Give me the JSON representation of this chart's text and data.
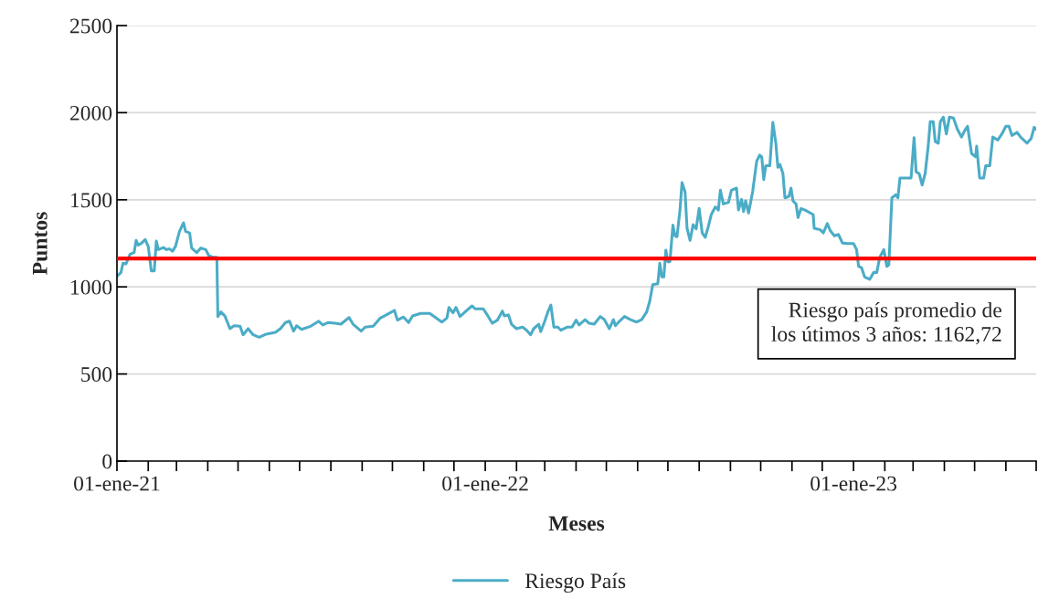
{
  "chart_data": {
    "type": "line",
    "xlabel": "Meses",
    "ylabel": "Puntos",
    "x": [
      "2021-01-01",
      "2021-01-05",
      "2021-01-07",
      "2021-01-10",
      "2021-01-14",
      "2021-01-18",
      "2021-01-20",
      "2021-01-22",
      "2021-01-25",
      "2021-01-29",
      "2021-02-01",
      "2021-02-04",
      "2021-02-07",
      "2021-02-09",
      "2021-02-11",
      "2021-02-16",
      "2021-02-19",
      "2021-02-22",
      "2021-02-25",
      "2021-02-28",
      "2021-03-04",
      "2021-03-08",
      "2021-03-10",
      "2021-03-14",
      "2021-03-16",
      "2021-03-21",
      "2021-03-25",
      "2021-03-30",
      "2021-04-02",
      "2021-04-06",
      "2021-04-10",
      "2021-04-11",
      "2021-04-14",
      "2021-04-18",
      "2021-04-23",
      "2021-04-27",
      "2021-05-03",
      "2021-05-06",
      "2021-05-11",
      "2021-05-16",
      "2021-05-22",
      "2021-05-29",
      "2021-06-07",
      "2021-06-12",
      "2021-06-17",
      "2021-06-21",
      "2021-06-25",
      "2021-06-28",
      "2021-07-03",
      "2021-07-12",
      "2021-07-20",
      "2021-07-24",
      "2021-07-29",
      "2021-08-05",
      "2021-08-11",
      "2021-08-19",
      "2021-08-23",
      "2021-08-31",
      "2021-09-04",
      "2021-09-12",
      "2021-09-19",
      "2021-09-25",
      "2021-10-03",
      "2021-10-06",
      "2021-10-12",
      "2021-10-17",
      "2021-10-21",
      "2021-10-29",
      "2021-11-07",
      "2021-11-19",
      "2021-11-24",
      "2021-11-26",
      "2021-11-30",
      "2021-12-03",
      "2021-12-07",
      "2021-12-13",
      "2021-12-19",
      "2021-12-22",
      "2021-12-30",
      "2022-01-03",
      "2022-01-08",
      "2022-01-13",
      "2022-01-18",
      "2022-01-20",
      "2022-01-24",
      "2022-01-27",
      "2022-02-01",
      "2022-02-07",
      "2022-02-11",
      "2022-02-15",
      "2022-02-18",
      "2022-02-23",
      "2022-02-25",
      "2022-03-01",
      "2022-03-04",
      "2022-03-07",
      "2022-03-10",
      "2022-03-14",
      "2022-03-17",
      "2022-03-23",
      "2022-03-28",
      "2022-04-01",
      "2022-04-04",
      "2022-04-10",
      "2022-04-14",
      "2022-04-19",
      "2022-04-25",
      "2022-04-29",
      "2022-05-04",
      "2022-05-08",
      "2022-05-10",
      "2022-05-14",
      "2022-05-19",
      "2022-05-25",
      "2022-05-31",
      "2022-06-05",
      "2022-06-10",
      "2022-06-13",
      "2022-06-16",
      "2022-06-21",
      "2022-06-23",
      "2022-06-25",
      "2022-06-27",
      "2022-06-29",
      "2022-07-01",
      "2022-07-03",
      "2022-07-06",
      "2022-07-08",
      "2022-07-10",
      "2022-07-13",
      "2022-07-15",
      "2022-07-18",
      "2022-07-20",
      "2022-07-23",
      "2022-07-26",
      "2022-07-29",
      "2022-08-01",
      "2022-08-04",
      "2022-08-07",
      "2022-08-10",
      "2022-08-13",
      "2022-08-17",
      "2022-08-20",
      "2022-08-22",
      "2022-08-25",
      "2022-08-30",
      "2022-09-02",
      "2022-09-07",
      "2022-09-09",
      "2022-09-12",
      "2022-09-14",
      "2022-09-16",
      "2022-09-19",
      "2022-09-23",
      "2022-09-27",
      "2022-09-30",
      "2022-10-02",
      "2022-10-04",
      "2022-10-06",
      "2022-10-10",
      "2022-10-13",
      "2022-10-16",
      "2022-10-18",
      "2022-10-20",
      "2022-10-23",
      "2022-10-25",
      "2022-10-29",
      "2022-10-31",
      "2022-11-02",
      "2022-11-05",
      "2022-11-07",
      "2022-11-10",
      "2022-11-14",
      "2022-11-22",
      "2022-11-23",
      "2022-11-29",
      "2022-12-02",
      "2022-12-06",
      "2022-12-09",
      "2022-12-13",
      "2022-12-17",
      "2022-12-21",
      "2022-12-26",
      "2023-01-01",
      "2023-01-04",
      "2023-01-06",
      "2023-01-09",
      "2023-01-12",
      "2023-01-17",
      "2023-01-21",
      "2023-01-24",
      "2023-01-27",
      "2023-01-31",
      "2023-02-03",
      "2023-02-05",
      "2023-02-08",
      "2023-02-12",
      "2023-02-14",
      "2023-02-16",
      "2023-02-22",
      "2023-02-27",
      "2023-03-02",
      "2023-03-04",
      "2023-03-07",
      "2023-03-10",
      "2023-03-13",
      "2023-03-16",
      "2023-03-18",
      "2023-03-21",
      "2023-03-23",
      "2023-03-26",
      "2023-03-28",
      "2023-03-31",
      "2023-04-03",
      "2023-04-06",
      "2023-04-10",
      "2023-04-14",
      "2023-04-18",
      "2023-04-21",
      "2023-04-24",
      "2023-04-28",
      "2023-05-02",
      "2023-05-03",
      "2023-05-06",
      "2023-05-10",
      "2023-05-12",
      "2023-05-16",
      "2023-05-19",
      "2023-05-24",
      "2023-05-28",
      "2023-06-01",
      "2023-06-04",
      "2023-06-07",
      "2023-06-12",
      "2023-06-16",
      "2023-06-22",
      "2023-06-26",
      "2023-06-29",
      "2023-07-01"
    ],
    "series": [
      {
        "name": "Riesgo País",
        "color": "#4bacc6",
        "values": [
          1060,
          1083,
          1136,
          1132,
          1188,
          1197,
          1267,
          1240,
          1249,
          1272,
          1232,
          1092,
          1092,
          1263,
          1214,
          1226,
          1214,
          1218,
          1205,
          1232,
          1319,
          1368,
          1319,
          1310,
          1223,
          1197,
          1223,
          1214,
          1179,
          1170,
          1170,
          830,
          856,
          833,
          760,
          777,
          774,
          725,
          760,
          725,
          711,
          729,
          739,
          760,
          795,
          803,
          746,
          777,
          756,
          774,
          803,
          781,
          795,
          791,
          786,
          824,
          786,
          746,
          769,
          774,
          821,
          839,
          865,
          809,
          827,
          795,
          833,
          848,
          848,
          798,
          821,
          882,
          851,
          882,
          830,
          861,
          891,
          874,
          874,
          839,
          791,
          809,
          861,
          833,
          839,
          786,
          760,
          769,
          751,
          725,
          760,
          786,
          743,
          803,
          856,
          896,
          769,
          769,
          751,
          769,
          769,
          809,
          781,
          812,
          791,
          786,
          830,
          812,
          760,
          812,
          777,
          803,
          830,
          812,
          798,
          812,
          856,
          917,
          1013,
          1018,
          1136,
          1057,
          1057,
          1211,
          1144,
          1144,
          1354,
          1293,
          1288,
          1441,
          1599,
          1546,
          1336,
          1267,
          1357,
          1333,
          1450,
          1310,
          1284,
          1345,
          1415,
          1459,
          1441,
          1555,
          1476,
          1485,
          1555,
          1567,
          1441,
          1502,
          1432,
          1494,
          1424,
          1546,
          1721,
          1756,
          1747,
          1616,
          1695,
          1695,
          1944,
          1825,
          1686,
          1703,
          1651,
          1511,
          1520,
          1567,
          1494,
          1476,
          1398,
          1450,
          1441,
          1415,
          1336,
          1328,
          1310,
          1363,
          1322,
          1293,
          1301,
          1252,
          1249,
          1249,
          1214,
          1118,
          1109,
          1057,
          1043,
          1083,
          1083,
          1170,
          1214,
          1118,
          1127,
          1511,
          1529,
          1511,
          1625,
          1625,
          1625,
          1857,
          1660,
          1651,
          1585,
          1651,
          1808,
          1948,
          1948,
          1834,
          1825,
          1948,
          1974,
          1878,
          1974,
          1969,
          1904,
          1860,
          1895,
          1922,
          1765,
          1747,
          1808,
          1625,
          1625,
          1695,
          1695,
          1860,
          1843,
          1878,
          1922,
          1922,
          1869,
          1887,
          1857,
          1825,
          1851,
          1916,
          1904
        ]
      }
    ],
    "xlim": [
      "2021-01-01",
      "2023-07-01"
    ],
    "xticks": [
      {
        "value": "2021-01-01",
        "label": "01-ene-21"
      },
      {
        "value": "2021-02-01",
        "label": null
      },
      {
        "value": "2021-03-01",
        "label": null
      },
      {
        "value": "2021-04-01",
        "label": null
      },
      {
        "value": "2021-05-01",
        "label": null
      },
      {
        "value": "2021-06-01",
        "label": null
      },
      {
        "value": "2021-07-01",
        "label": null
      },
      {
        "value": "2021-08-01",
        "label": null
      },
      {
        "value": "2021-09-01",
        "label": null
      },
      {
        "value": "2021-10-01",
        "label": null
      },
      {
        "value": "2021-11-01",
        "label": null
      },
      {
        "value": "2021-12-01",
        "label": null
      },
      {
        "value": "2022-01-01",
        "label": "01-ene-22"
      },
      {
        "value": "2022-02-01",
        "label": null
      },
      {
        "value": "2022-03-01",
        "label": null
      },
      {
        "value": "2022-04-01",
        "label": null
      },
      {
        "value": "2022-05-01",
        "label": null
      },
      {
        "value": "2022-06-01",
        "label": null
      },
      {
        "value": "2022-07-01",
        "label": null
      },
      {
        "value": "2022-08-01",
        "label": null
      },
      {
        "value": "2022-09-01",
        "label": null
      },
      {
        "value": "2022-10-01",
        "label": null
      },
      {
        "value": "2022-11-01",
        "label": null
      },
      {
        "value": "2022-12-01",
        "label": null
      },
      {
        "value": "2023-01-01",
        "label": "01-ene-23"
      },
      {
        "value": "2023-02-01",
        "label": null
      },
      {
        "value": "2023-03-01",
        "label": null
      },
      {
        "value": "2023-04-01",
        "label": null
      },
      {
        "value": "2023-05-01",
        "label": null
      },
      {
        "value": "2023-06-01",
        "label": null
      },
      {
        "value": "2023-07-01",
        "label": null
      }
    ],
    "ylim": [
      0,
      2500
    ],
    "yticks": [
      0,
      500,
      1000,
      1500,
      2000,
      2500
    ],
    "ref_lines": [
      {
        "axis": "y",
        "value": 1162.72,
        "label": "Riesgo país promedio de\nlos útimos 3 años: 1162,72",
        "color": "#ff0000",
        "line_style": "solid"
      }
    ],
    "grid": "y",
    "legend": "bottom",
    "line_style": "solid",
    "marker": "none"
  }
}
